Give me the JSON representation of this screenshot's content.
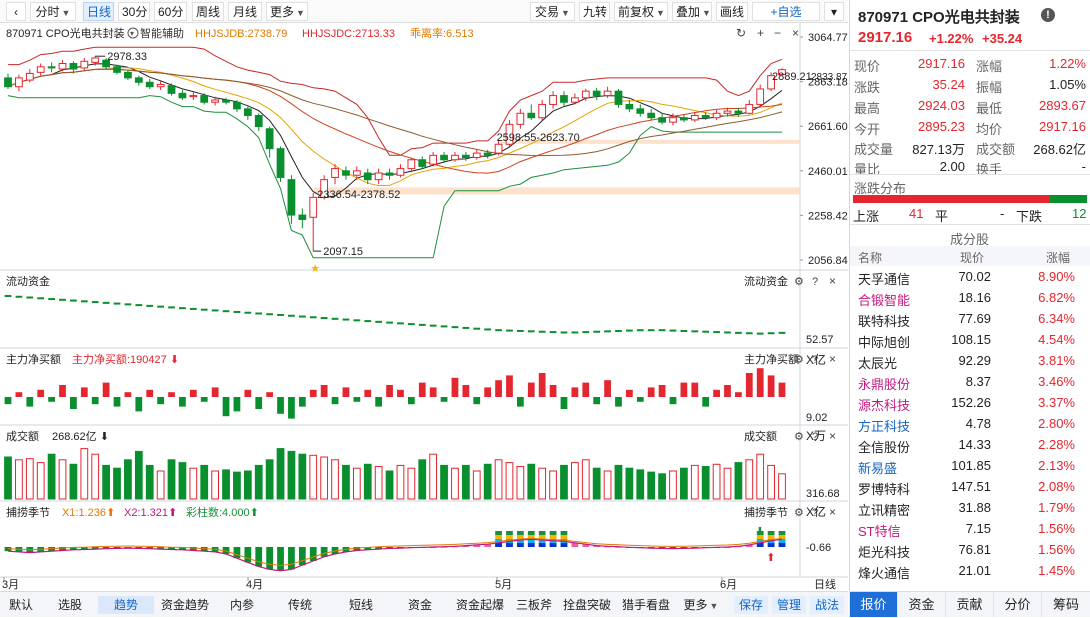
{
  "toolbar": {
    "period_items": [
      {
        "label": "分时",
        "has_caret": true
      },
      {
        "label": "日线",
        "active": true
      },
      {
        "label": "30分"
      },
      {
        "label": "60分"
      },
      {
        "label": "周线"
      },
      {
        "label": "月线"
      },
      {
        "label": "更多",
        "has_caret": true
      }
    ],
    "right_items": [
      {
        "label": "交易",
        "has_caret": true
      },
      {
        "label": "九转"
      },
      {
        "label": "前复权",
        "has_caret": true
      },
      {
        "label": "叠加",
        "has_caret": true
      },
      {
        "label": "画线"
      },
      {
        "label": "+自选"
      }
    ]
  },
  "main_chart": {
    "code_name": "870971 CPO光电共封装",
    "assist": "智能辅助",
    "ind1": "HHJSJDB:2738.79",
    "ind2": "HHJSJDC:2713.33",
    "ind3": "乖离率:6.513",
    "price_axis": [
      "3064.77",
      "2863.18",
      "2661.60",
      "2460.01",
      "2258.42",
      "2056.84"
    ],
    "price_range": [
      2056.84,
      3064.77
    ],
    "ann_high": "2978.33",
    "ann_low": "2097.15",
    "ann_range1": "2598.55-2623.70",
    "ann_range2": "2336.54-2378.52",
    "ann_right1": "2889.21",
    "ann_right2": "2833.87"
  },
  "panels": {
    "flow": {
      "title": "流动资金",
      "title_right": "流动资金",
      "axis_value": "52.57",
      "unit": "X亿"
    },
    "net": {
      "title": "主力净买额",
      "label": "主力净买额:190427",
      "title_right": "主力净买额",
      "axis_value": "9.02",
      "unit": "X万"
    },
    "vol": {
      "title": "成交额",
      "label": "268.62亿",
      "title_right": "成交额",
      "axis_value": "316.68",
      "unit": "X亿"
    },
    "season": {
      "title": "捕捞季节",
      "x1": "X1:1.236",
      "x2": "X2:1.321",
      "bars": "彩柱数:4.000",
      "title_right": "捕捞季节",
      "axis_value": "-0.66"
    }
  },
  "date_axis": [
    "3月",
    "4月",
    "5月",
    "6月"
  ],
  "date_axis_btn": "日线",
  "chart_data": {
    "type": "candlestick",
    "title": "870971 CPO光电共封装",
    "ylim": [
      2056.84,
      3064.77
    ],
    "x_labels": [
      "3月",
      "4月",
      "5月",
      "6月"
    ],
    "candles": [
      [
        2880,
        2840,
        2900,
        2830
      ],
      [
        2840,
        2880,
        2895,
        2820
      ],
      [
        2870,
        2900,
        2920,
        2860
      ],
      [
        2905,
        2930,
        2945,
        2890
      ],
      [
        2930,
        2925,
        2950,
        2905
      ],
      [
        2920,
        2945,
        2960,
        2910
      ],
      [
        2945,
        2920,
        2955,
        2900
      ],
      [
        2925,
        2955,
        2970,
        2915
      ],
      [
        2950,
        2970,
        2978,
        2935
      ],
      [
        2960,
        2930,
        2970,
        2920
      ],
      [
        2930,
        2905,
        2940,
        2895
      ],
      [
        2905,
        2880,
        2915,
        2870
      ],
      [
        2880,
        2860,
        2890,
        2845
      ],
      [
        2860,
        2840,
        2875,
        2830
      ],
      [
        2840,
        2850,
        2865,
        2825
      ],
      [
        2845,
        2810,
        2855,
        2800
      ],
      [
        2810,
        2790,
        2825,
        2780
      ],
      [
        2795,
        2800,
        2815,
        2780
      ],
      [
        2800,
        2770,
        2810,
        2760
      ],
      [
        2770,
        2780,
        2795,
        2755
      ],
      [
        2780,
        2770,
        2790,
        2760
      ],
      [
        2770,
        2740,
        2780,
        2725
      ],
      [
        2740,
        2710,
        2750,
        2690
      ],
      [
        2710,
        2660,
        2720,
        2640
      ],
      [
        2650,
        2560,
        2660,
        2520
      ],
      [
        2560,
        2430,
        2570,
        2410
      ],
      [
        2420,
        2260,
        2440,
        2220
      ],
      [
        2260,
        2240,
        2290,
        2200
      ],
      [
        2250,
        2340,
        2360,
        2097
      ],
      [
        2340,
        2420,
        2440,
        2330
      ],
      [
        2430,
        2470,
        2490,
        2400
      ],
      [
        2460,
        2440,
        2480,
        2420
      ],
      [
        2440,
        2460,
        2480,
        2420
      ],
      [
        2450,
        2420,
        2470,
        2400
      ],
      [
        2420,
        2450,
        2470,
        2400
      ],
      [
        2450,
        2440,
        2470,
        2420
      ],
      [
        2440,
        2470,
        2490,
        2430
      ],
      [
        2470,
        2510,
        2520,
        2460
      ],
      [
        2510,
        2480,
        2525,
        2470
      ],
      [
        2490,
        2530,
        2545,
        2480
      ],
      [
        2530,
        2510,
        2545,
        2495
      ],
      [
        2510,
        2530,
        2545,
        2500
      ],
      [
        2530,
        2520,
        2545,
        2505
      ],
      [
        2520,
        2540,
        2555,
        2510
      ],
      [
        2540,
        2530,
        2555,
        2515
      ],
      [
        2540,
        2580,
        2600,
        2530
      ],
      [
        2580,
        2670,
        2690,
        2570
      ],
      [
        2670,
        2720,
        2740,
        2650
      ],
      [
        2720,
        2700,
        2760,
        2690
      ],
      [
        2700,
        2760,
        2780,
        2690
      ],
      [
        2760,
        2800,
        2820,
        2740
      ],
      [
        2800,
        2770,
        2820,
        2750
      ],
      [
        2770,
        2790,
        2810,
        2760
      ],
      [
        2790,
        2820,
        2830,
        2775
      ],
      [
        2820,
        2800,
        2835,
        2780
      ],
      [
        2800,
        2820,
        2840,
        2790
      ],
      [
        2820,
        2760,
        2830,
        2745
      ],
      [
        2760,
        2740,
        2780,
        2725
      ],
      [
        2740,
        2720,
        2760,
        2705
      ],
      [
        2720,
        2700,
        2740,
        2690
      ],
      [
        2700,
        2680,
        2720,
        2670
      ],
      [
        2680,
        2700,
        2720,
        2665
      ],
      [
        2700,
        2690,
        2715,
        2680
      ],
      [
        2690,
        2710,
        2725,
        2680
      ],
      [
        2710,
        2700,
        2725,
        2690
      ],
      [
        2700,
        2720,
        2735,
        2690
      ],
      [
        2720,
        2730,
        2745,
        2705
      ],
      [
        2730,
        2720,
        2745,
        2705
      ],
      [
        2720,
        2760,
        2780,
        2715
      ],
      [
        2760,
        2830,
        2850,
        2750
      ],
      [
        2830,
        2890,
        2905,
        2820
      ],
      [
        2895,
        2917,
        2924,
        2893
      ]
    ],
    "flow_values": [
      1,
      0.98,
      0.96,
      0.94,
      0.92,
      0.9,
      0.88,
      0.86,
      0.84,
      0.82,
      0.8,
      0.78,
      0.76,
      0.74,
      0.72,
      0.7,
      0.68,
      0.66,
      0.64,
      0.62,
      0.6,
      0.58,
      0.56,
      0.54,
      0.52,
      0.5,
      0.48,
      0.46,
      0.44,
      0.42,
      0.4,
      0.38,
      0.36,
      0.34,
      0.32,
      0.3,
      0.28,
      0.26,
      0.24,
      0.22,
      0.2,
      0.18,
      0.16,
      0.14,
      0.12,
      0.1,
      0.09,
      0.08,
      0.07,
      0.06,
      0.05,
      0.04,
      0.04,
      0.05,
      0.06,
      0.07,
      0.08,
      0.09,
      0.1,
      0.1,
      0.1,
      0.09,
      0.08,
      0.07,
      0.06,
      0.05,
      0.04,
      0.03,
      0.02,
      0.01,
      0.02,
      0.03
    ],
    "net_values": [
      -0.3,
      0.2,
      -0.4,
      0.3,
      -0.2,
      0.5,
      -0.5,
      0.4,
      -0.3,
      0.6,
      -0.4,
      0.2,
      -0.6,
      0.3,
      -0.3,
      0.2,
      -0.4,
      0.3,
      -0.2,
      0.4,
      -0.8,
      -0.6,
      0.3,
      -0.5,
      0.2,
      -0.7,
      -0.9,
      -0.4,
      0.3,
      0.5,
      -0.3,
      0.4,
      -0.2,
      0.3,
      -0.4,
      0.5,
      0.3,
      -0.3,
      0.6,
      0.4,
      -0.2,
      0.8,
      0.5,
      -0.3,
      0.4,
      0.7,
      0.9,
      -0.4,
      0.6,
      1,
      0.5,
      -0.5,
      0.4,
      0.6,
      -0.3,
      0.7,
      -0.4,
      0.3,
      -0.2,
      0.4,
      0.5,
      -0.3,
      0.6,
      0.6,
      -0.4,
      0.3,
      0.5,
      0.2,
      1,
      1.2,
      0.9,
      0.6
    ],
    "vol_values": [
      0.75,
      0.7,
      0.72,
      0.65,
      0.8,
      0.7,
      0.62,
      0.9,
      0.8,
      0.6,
      0.55,
      0.7,
      0.85,
      0.6,
      0.5,
      0.7,
      0.65,
      0.55,
      0.6,
      0.5,
      0.52,
      0.48,
      0.5,
      0.6,
      0.7,
      0.9,
      0.85,
      0.8,
      0.78,
      0.75,
      0.7,
      0.6,
      0.55,
      0.62,
      0.58,
      0.5,
      0.6,
      0.55,
      0.7,
      0.8,
      0.6,
      0.55,
      0.6,
      0.5,
      0.62,
      0.7,
      0.65,
      0.58,
      0.62,
      0.55,
      0.5,
      0.6,
      0.65,
      0.7,
      0.55,
      0.5,
      0.6,
      0.55,
      0.52,
      0.48,
      0.45,
      0.5,
      0.55,
      0.6,
      0.58,
      0.62,
      0.55,
      0.65,
      0.7,
      0.8,
      0.6,
      0.45
    ],
    "season_values": [
      -0.3,
      -0.35,
      -0.4,
      -0.35,
      -0.3,
      -0.25,
      -0.2,
      -0.18,
      -0.15,
      -0.12,
      -0.1,
      -0.08,
      -0.1,
      -0.12,
      -0.15,
      -0.18,
      -0.2,
      -0.25,
      -0.3,
      -0.35,
      -0.5,
      -0.8,
      -1.1,
      -1.4,
      -1.6,
      -1.7,
      -1.6,
      -1.3,
      -1.0,
      -0.7,
      -0.5,
      -0.35,
      -0.25,
      -0.2,
      -0.15,
      -0.1,
      -0.08,
      -0.05,
      -0.02,
      0.0,
      0.02,
      0.05,
      0.1,
      0.15,
      0.2,
      0.3,
      0.4,
      0.5,
      0.55,
      0.5,
      0.45,
      0.4,
      0.3,
      0.2,
      0.1,
      0.05,
      0.02,
      -0.02,
      -0.05,
      -0.08,
      -0.1,
      -0.12,
      -0.1,
      -0.08,
      -0.05,
      -0.02,
      0.0,
      0.05,
      0.15,
      0.3,
      0.45,
      0.55
    ]
  },
  "quote": {
    "title": "870971 CPO光电共封装",
    "price": "2917.16",
    "change_pct": "+1.22%",
    "change": "+35.24",
    "rows": [
      {
        "l1": "现价",
        "v1": "2917.16",
        "c1": "red",
        "l2": "涨幅",
        "v2": "1.22%",
        "c2": "red"
      },
      {
        "l1": "涨跌",
        "v1": "35.24",
        "c1": "red",
        "l2": "振幅",
        "v2": "1.05%",
        "c2": ""
      },
      {
        "l1": "最高",
        "v1": "2924.03",
        "c1": "red",
        "l2": "最低",
        "v2": "2893.67",
        "c2": "red"
      },
      {
        "l1": "今开",
        "v1": "2895.23",
        "c1": "red",
        "l2": "均价",
        "v2": "2917.16",
        "c2": "red"
      },
      {
        "l1": "成交量",
        "v1": "827.13万",
        "c1": "",
        "l2": "成交额",
        "v2": "268.62亿",
        "c2": ""
      },
      {
        "l1": "量比",
        "v1": "2.00",
        "c1": "",
        "l2": "换手",
        "v2": "-",
        "c2": ""
      }
    ],
    "dist_title": "涨跌分布",
    "up_label": "上涨",
    "up_count": "41",
    "flat_label": "平",
    "flat_count": "-",
    "down_label": "下跌",
    "down_count": "12",
    "comp_title": "成分股",
    "comp_headers": [
      "名称",
      "现价",
      "涨幅"
    ],
    "components": [
      {
        "name": "天孚通信",
        "price": "70.02",
        "pct": "8.90%",
        "color": "#222"
      },
      {
        "name": "合锻智能",
        "price": "18.16",
        "pct": "6.82%",
        "color": "#c2187f"
      },
      {
        "name": "联特科技",
        "price": "77.69",
        "pct": "6.34%",
        "color": "#222"
      },
      {
        "name": "中际旭创",
        "price": "108.15",
        "pct": "4.54%",
        "color": "#222"
      },
      {
        "name": "太辰光",
        "price": "92.29",
        "pct": "3.81%",
        "color": "#222"
      },
      {
        "name": "永鼎股份",
        "price": "8.37",
        "pct": "3.46%",
        "color": "#c2187f"
      },
      {
        "name": "源杰科技",
        "price": "152.26",
        "pct": "3.37%",
        "color": "#c2187f"
      },
      {
        "name": "方正科技",
        "price": "4.78",
        "pct": "2.80%",
        "color": "#1565c0"
      },
      {
        "name": "全信股份",
        "price": "14.33",
        "pct": "2.28%",
        "color": "#222"
      },
      {
        "name": "新易盛",
        "price": "101.85",
        "pct": "2.13%",
        "color": "#1565c0"
      },
      {
        "name": "罗博特科",
        "price": "147.51",
        "pct": "2.08%",
        "color": "#222"
      },
      {
        "name": "立讯精密",
        "price": "31.88",
        "pct": "1.79%",
        "color": "#222"
      },
      {
        "name": "ST特信",
        "price": "7.15",
        "pct": "1.56%",
        "color": "#c2187f"
      },
      {
        "name": "炬光科技",
        "price": "76.81",
        "pct": "1.56%",
        "color": "#222"
      },
      {
        "name": "烽火通信",
        "price": "21.01",
        "pct": "1.45%",
        "color": "#222"
      }
    ]
  },
  "bottom_tabs": [
    {
      "label": "默认"
    },
    {
      "label": "选股"
    },
    {
      "label": "趋势",
      "active": true
    },
    {
      "label": "资金趋势"
    },
    {
      "label": "内参"
    },
    {
      "label": "传统"
    },
    {
      "label": "短线"
    },
    {
      "label": "资金"
    },
    {
      "label": "资金起爆"
    },
    {
      "label": "三板斧"
    },
    {
      "label": "拴盘突破"
    },
    {
      "label": "猎手看盘"
    },
    {
      "label": "更多",
      "has_caret": true
    }
  ],
  "bottom_right": [
    {
      "label": "保存",
      "color": "#1565c0"
    },
    {
      "label": "管理",
      "color": "#1565c0"
    },
    {
      "label": "战法",
      "color": "#1565c0"
    }
  ],
  "right_tabs": [
    {
      "label": "报价",
      "active": true
    },
    {
      "label": "资金"
    },
    {
      "label": "贡献"
    },
    {
      "label": "分价"
    },
    {
      "label": "筹码"
    }
  ],
  "colors": {
    "up": "#e4262e",
    "down": "#0a8f2e",
    "accent": "#1f6fd8"
  }
}
